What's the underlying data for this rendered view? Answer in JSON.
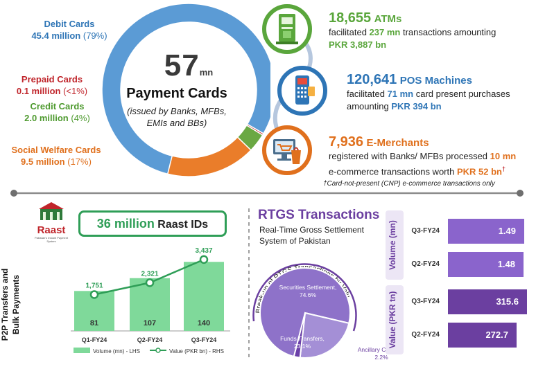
{
  "cards": {
    "total_number": "57",
    "total_unit": "mn",
    "title": "Payment Cards",
    "subtitle_1": "(issued by Banks, MFBs,",
    "subtitle_2": "EMIs and BBs)",
    "segments": [
      {
        "name": "Debit Cards",
        "value_text": "45.4 million",
        "pct_text": "(79%)",
        "value": 45.4,
        "color": "#5b9bd5"
      },
      {
        "name": "Prepaid Cards",
        "value_text": "0.1 million",
        "pct_text": "(<1%)",
        "value": 0.1,
        "color": "#c0252b"
      },
      {
        "name": "Credit Cards",
        "value_text": "2.0 million",
        "pct_text": "(4%)",
        "value": 2.0,
        "color": "#6aa843"
      },
      {
        "name": "Social Welfare Cards",
        "value_text": "9.5 million",
        "pct_text": "(17%)",
        "value": 9.5,
        "color": "#ea7d2a"
      }
    ]
  },
  "atms": {
    "number": "18,655",
    "label": "ATMs",
    "line1_pre": "facilitated",
    "line1_num": "237 mn",
    "line1_post": "transactions amounting",
    "line2": "PKR 3,887 bn",
    "color": "#5aa63c"
  },
  "pos": {
    "number": "120,641",
    "label": "POS Machines",
    "line1_pre": "facilitated",
    "line1_num": "71 mn",
    "line1_post": "card present purchases",
    "line2_pre": "amounting",
    "line2_num": "PKR 394 bn",
    "color": "#2e75b6"
  },
  "emerchants": {
    "number": "7,936",
    "label": "E-Merchants",
    "line1_pre": "registered with Banks/ MFBs processed",
    "line1_num": "10 mn",
    "line2_pre": "e-commerce transactions worth",
    "line2_num": "PKR 52 bn",
    "dagger": "†",
    "footnote": "†Card-not-present (CNP) e-commerce transactions only",
    "color": "#e0701d"
  },
  "raast": {
    "logo_text": "Raast",
    "logo_sub": "Pakistan's Instant Payment System",
    "ids_number": "36 million",
    "ids_label": "Raast IDs",
    "side_label_1": "P2P Transfers and",
    "side_label_2": "Bulk Payments"
  },
  "chart_data": {
    "type": "bar",
    "categories": [
      "Q1-FY24",
      "Q2-FY24",
      "Q3-FY24"
    ],
    "series": [
      {
        "name": "Volume (mn) - LHS",
        "type": "bar",
        "values": [
          81,
          107,
          140
        ]
      },
      {
        "name": "Value (PKR bn) - RHS",
        "type": "line",
        "values": [
          1751,
          2321,
          3437
        ],
        "labels": [
          "1,751",
          "2,321",
          "3,437"
        ]
      }
    ],
    "bar_color": "#7fd99a",
    "line_color": "#2f9e57"
  },
  "rtgs": {
    "title": "RTGS Transactions",
    "subtitle_1": "Real-Time Gross Settlement",
    "subtitle_2": "System of Pakistan",
    "pie_title": "Break-up of RTGS Transactions by Value",
    "pie": [
      {
        "name": "Securities Settlement,",
        "pct_text": "74.6%",
        "value": 74.6,
        "color": "#8e72c9"
      },
      {
        "name": "Funds Transfers,",
        "pct_text": "23.1%",
        "value": 23.1,
        "color": "#a48fd6"
      },
      {
        "name": "Ancillary Clearing,",
        "pct_text": "2.2%",
        "value": 2.2,
        "color": "#6a3fa8"
      }
    ],
    "volume_axis": "Volume (mn)",
    "value_axis": "Value (PKR tn)",
    "volume": [
      {
        "quarter": "Q3-FY24",
        "value": 1.49,
        "label": "1.49"
      },
      {
        "quarter": "Q2-FY24",
        "value": 1.48,
        "label": "1.48"
      }
    ],
    "value": [
      {
        "quarter": "Q3-FY24",
        "value": 315.6,
        "label": "315.6"
      },
      {
        "quarter": "Q2-FY24",
        "value": 272.7,
        "label": "272.7"
      }
    ],
    "colors": {
      "volume": "#8a64cc",
      "value": "#6b3fa0",
      "title": "#6b3fa0"
    }
  }
}
